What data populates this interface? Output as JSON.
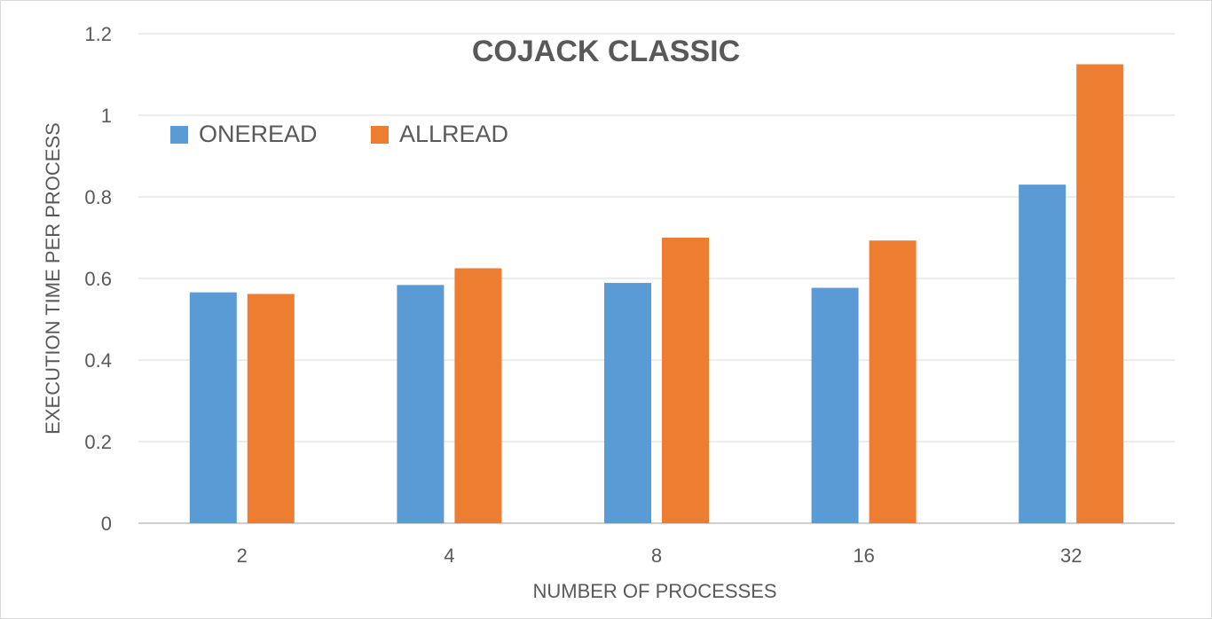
{
  "chart_data": {
    "type": "bar",
    "title": "COJACK CLASSIC",
    "xlabel": "NUMBER  OF PROCESSES",
    "ylabel": "EXECUTION  TIME PER PROCESS",
    "categories": [
      "2",
      "4",
      "8",
      "16",
      "32"
    ],
    "series": [
      {
        "name": "ONEREAD",
        "color": "#5b9bd5",
        "values": [
          0.566,
          0.584,
          0.589,
          0.577,
          0.83
        ]
      },
      {
        "name": "ALLREAD",
        "color": "#ed7d31",
        "values": [
          0.562,
          0.625,
          0.7,
          0.693,
          1.125
        ]
      }
    ],
    "ylim": [
      0,
      1.2
    ],
    "yticks": [
      0,
      0.2,
      0.4,
      0.6,
      0.8,
      1,
      1.2
    ],
    "ytick_labels": [
      "0",
      "0.2",
      "0.4",
      "0.6",
      "0.8",
      "1",
      "1.2"
    ],
    "grid": true,
    "legend_position": "top-left"
  }
}
